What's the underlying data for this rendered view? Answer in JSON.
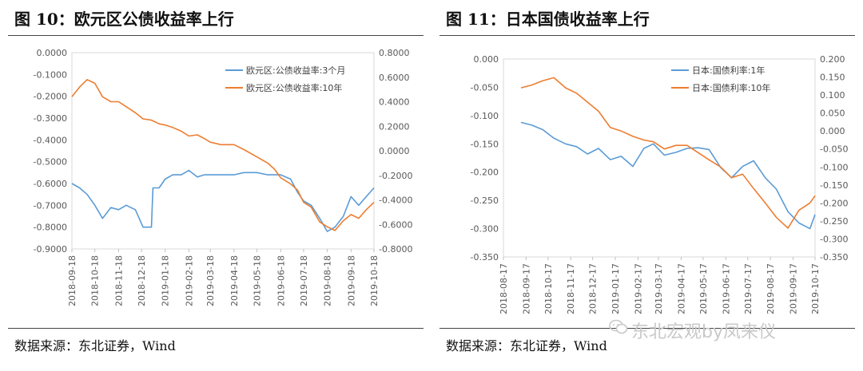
{
  "left": {
    "title": "图 10：欧元区公债收益率上行",
    "source": "数据来源：东北证券，Wind"
  },
  "right": {
    "title": "图 11：日本国债收益率上行",
    "source": "数据来源：东北证券，Wind"
  },
  "watermark": "东北宏观by凤来仪",
  "watermark_icon": "wechat-icon",
  "chart_data": [
    {
      "type": "line",
      "x_ticks": [
        "2018-09-18",
        "2018-10-18",
        "2018-11-18",
        "2018-12-18",
        "2019-01-18",
        "2019-02-18",
        "2019-03-18",
        "2019-04-18",
        "2019-05-18",
        "2019-06-18",
        "2019-07-18",
        "2019-08-18",
        "2019-09-18",
        "2019-10-18"
      ],
      "y_left": {
        "min": -0.9,
        "max": 0.0,
        "ticks": [
          "0.0000",
          "-0.1000",
          "-0.2000",
          "-0.3000",
          "-0.4000",
          "-0.5000",
          "-0.6000",
          "-0.7000",
          "-0.8000",
          "-0.9000"
        ]
      },
      "y_right": {
        "min": -0.8,
        "max": 0.8,
        "ticks": [
          "0.8000",
          "0.6000",
          "0.4000",
          "0.2000",
          "0.0000",
          "-0.2000",
          "-0.4000",
          "-0.6000",
          "-0.8000"
        ]
      },
      "legend_position": "top-right",
      "series": [
        {
          "name": "欧元区:公债收益率:3个月",
          "axis": "left",
          "color": "#5b9bd5",
          "x": [
            "2018-09-18",
            "2018-09-28",
            "2018-10-08",
            "2018-10-18",
            "2018-10-28",
            "2018-11-08",
            "2018-11-18",
            "2018-11-28",
            "2018-12-10",
            "2018-12-20",
            "2018-12-31",
            "2019-01-02",
            "2019-01-10",
            "2019-01-18",
            "2019-01-28",
            "2019-02-08",
            "2019-02-18",
            "2019-03-01",
            "2019-03-10",
            "2019-03-18",
            "2019-04-01",
            "2019-04-18",
            "2019-05-01",
            "2019-05-18",
            "2019-06-01",
            "2019-06-10",
            "2019-06-18",
            "2019-07-01",
            "2019-07-10",
            "2019-07-18",
            "2019-07-28",
            "2019-08-08",
            "2019-08-18",
            "2019-08-28",
            "2019-09-08",
            "2019-09-18",
            "2019-09-28",
            "2019-10-08",
            "2019-10-18"
          ],
          "y": [
            -0.6,
            -0.62,
            -0.65,
            -0.7,
            -0.76,
            -0.71,
            -0.72,
            -0.7,
            -0.72,
            -0.8,
            -0.8,
            -0.62,
            -0.62,
            -0.58,
            -0.56,
            -0.56,
            -0.54,
            -0.57,
            -0.56,
            -0.56,
            -0.56,
            -0.56,
            -0.55,
            -0.55,
            -0.56,
            -0.56,
            -0.56,
            -0.58,
            -0.64,
            -0.68,
            -0.7,
            -0.76,
            -0.82,
            -0.8,
            -0.75,
            -0.66,
            -0.7,
            -0.66,
            -0.62
          ]
        },
        {
          "name": "欧元区:公债收益率:10年",
          "axis": "right",
          "color": "#ed7d31",
          "x": [
            "2018-09-18",
            "2018-09-28",
            "2018-10-08",
            "2018-10-18",
            "2018-10-28",
            "2018-11-08",
            "2018-11-18",
            "2018-11-28",
            "2018-12-10",
            "2018-12-20",
            "2018-12-31",
            "2019-01-10",
            "2019-01-18",
            "2019-01-28",
            "2019-02-08",
            "2019-02-18",
            "2019-03-01",
            "2019-03-10",
            "2019-03-18",
            "2019-04-01",
            "2019-04-18",
            "2019-05-01",
            "2019-05-18",
            "2019-06-01",
            "2019-06-10",
            "2019-06-18",
            "2019-07-01",
            "2019-07-10",
            "2019-07-18",
            "2019-07-28",
            "2019-08-08",
            "2019-08-18",
            "2019-08-28",
            "2019-09-08",
            "2019-09-18",
            "2019-09-28",
            "2019-10-08",
            "2019-10-18"
          ],
          "y": [
            0.44,
            0.52,
            0.58,
            0.55,
            0.44,
            0.4,
            0.4,
            0.36,
            0.31,
            0.26,
            0.25,
            0.22,
            0.21,
            0.19,
            0.16,
            0.12,
            0.13,
            0.1,
            0.07,
            0.05,
            0.05,
            0.01,
            -0.05,
            -0.1,
            -0.15,
            -0.22,
            -0.27,
            -0.32,
            -0.42,
            -0.46,
            -0.58,
            -0.62,
            -0.65,
            -0.57,
            -0.52,
            -0.55,
            -0.48,
            -0.42
          ]
        }
      ]
    },
    {
      "type": "line",
      "x_ticks": [
        "2018-08-17",
        "2018-09-17",
        "2018-10-17",
        "2018-11-17",
        "2018-12-17",
        "2019-01-17",
        "2019-02-17",
        "2019-03-17",
        "2019-04-17",
        "2019-05-17",
        "2019-06-17",
        "2019-07-17",
        "2019-08-17",
        "2019-09-17",
        "2019-10-17"
      ],
      "y_left": {
        "min": -0.35,
        "max": 0.0,
        "ticks": [
          "0.000",
          "-0.050",
          "-0.100",
          "-0.150",
          "-0.200",
          "-0.250",
          "-0.300",
          "-0.350"
        ]
      },
      "y_right": {
        "min": -0.35,
        "max": 0.2,
        "ticks": [
          "0.200",
          "0.150",
          "0.100",
          "0.050",
          "0.000",
          "-0.050",
          "-0.100",
          "-0.150",
          "-0.200",
          "-0.250",
          "-0.300",
          "-0.350"
        ]
      },
      "legend_position": "top-right",
      "series": [
        {
          "name": "日本:国债利率:1年",
          "axis": "left",
          "color": "#5b9bd5",
          "x": [
            "2018-09-10",
            "2018-09-25",
            "2018-10-10",
            "2018-10-25",
            "2018-11-10",
            "2018-11-25",
            "2018-12-10",
            "2018-12-25",
            "2019-01-10",
            "2019-01-25",
            "2019-02-10",
            "2019-02-25",
            "2019-03-10",
            "2019-03-25",
            "2019-04-10",
            "2019-04-25",
            "2019-05-10",
            "2019-05-25",
            "2019-06-10",
            "2019-06-25",
            "2019-07-10",
            "2019-07-25",
            "2019-08-10",
            "2019-08-25",
            "2019-09-10",
            "2019-09-25",
            "2019-10-10",
            "2019-10-17"
          ],
          "y": [
            -0.112,
            -0.117,
            -0.125,
            -0.14,
            -0.15,
            -0.155,
            -0.168,
            -0.158,
            -0.178,
            -0.172,
            -0.19,
            -0.158,
            -0.15,
            -0.17,
            -0.165,
            -0.158,
            -0.157,
            -0.16,
            -0.192,
            -0.21,
            -0.19,
            -0.18,
            -0.21,
            -0.23,
            -0.27,
            -0.29,
            -0.3,
            -0.275
          ]
        },
        {
          "name": "日本:国债利率:10年",
          "axis": "right",
          "color": "#ed7d31",
          "x": [
            "2018-09-10",
            "2018-09-25",
            "2018-10-10",
            "2018-10-25",
            "2018-11-10",
            "2018-11-25",
            "2018-12-10",
            "2018-12-25",
            "2019-01-10",
            "2019-01-25",
            "2019-02-10",
            "2019-02-25",
            "2019-03-10",
            "2019-03-25",
            "2019-04-10",
            "2019-04-25",
            "2019-05-10",
            "2019-05-25",
            "2019-06-10",
            "2019-06-25",
            "2019-07-10",
            "2019-07-25",
            "2019-08-10",
            "2019-08-25",
            "2019-09-10",
            "2019-09-25",
            "2019-10-10",
            "2019-10-17"
          ],
          "y": [
            0.12,
            0.128,
            0.14,
            0.148,
            0.12,
            0.105,
            0.08,
            0.055,
            0.01,
            0.0,
            -0.015,
            -0.025,
            -0.03,
            -0.05,
            -0.04,
            -0.04,
            -0.06,
            -0.08,
            -0.1,
            -0.13,
            -0.12,
            -0.16,
            -0.2,
            -0.24,
            -0.27,
            -0.22,
            -0.2,
            -0.18
          ]
        }
      ]
    }
  ]
}
